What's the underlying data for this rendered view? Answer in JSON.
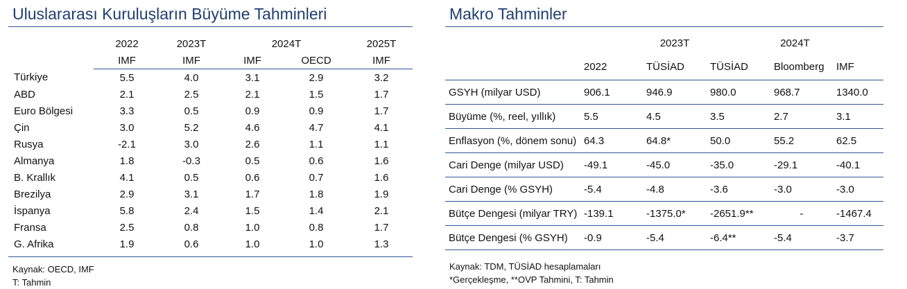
{
  "growth": {
    "title": "Uluslararası Kuruluşların Büyüme Tahminleri",
    "header_years": [
      "2022",
      "2023T",
      "2024T",
      "2025T"
    ],
    "header_sources": [
      "IMF",
      "IMF",
      "IMF",
      "OECD",
      "IMF"
    ],
    "rows": [
      {
        "country": "Türkiye",
        "values": [
          "5.5",
          "4.0",
          "3.1",
          "2.9",
          "3.2"
        ]
      },
      {
        "country": "ABD",
        "values": [
          "2.1",
          "2.5",
          "2.1",
          "1.5",
          "1.7"
        ]
      },
      {
        "country": "Euro Bölgesi",
        "values": [
          "3.3",
          "0.5",
          "0.9",
          "0.9",
          "1.7"
        ]
      },
      {
        "country": "Çin",
        "values": [
          "3.0",
          "5.2",
          "4.6",
          "4.7",
          "4.1"
        ]
      },
      {
        "country": "Rusya",
        "values": [
          "-2.1",
          "3.0",
          "2.6",
          "1.1",
          "1.1"
        ]
      },
      {
        "country": "Almanya",
        "values": [
          "1.8",
          "-0.3",
          "0.5",
          "0.6",
          "1.6"
        ]
      },
      {
        "country": "B. Krallık",
        "values": [
          "4.1",
          "0.5",
          "0.6",
          "0.7",
          "1.6"
        ]
      },
      {
        "country": "Brezilya",
        "values": [
          "2.9",
          "3.1",
          "1.7",
          "1.8",
          "1.9"
        ]
      },
      {
        "country": "İspanya",
        "values": [
          "5.8",
          "2.4",
          "1.5",
          "1.4",
          "2.1"
        ]
      },
      {
        "country": "Fransa",
        "values": [
          "2.5",
          "0.8",
          "1.0",
          "0.8",
          "1.7"
        ]
      },
      {
        "country": "G. Afrika",
        "values": [
          "1.9",
          "0.6",
          "1.0",
          "1.0",
          "1.3"
        ]
      }
    ],
    "source_lines": [
      "Kaynak: OECD, IMF",
      "T: Tahmin"
    ]
  },
  "macro": {
    "title": "Makro Tahminler",
    "header_years": [
      "2023T",
      "2024T"
    ],
    "header_sources": [
      "2022",
      "TÜSİAD",
      "TÜSİAD",
      "Bloomberg",
      "IMF"
    ],
    "rows": [
      {
        "label": "GSYH (milyar USD)",
        "values": [
          "906.1",
          "946.9",
          "980.0",
          "968.7",
          "1340.0"
        ]
      },
      {
        "label": "Büyüme (%, reel, yıllık)",
        "values": [
          "5.5",
          "4.5",
          "3.5",
          "2.7",
          "3.1"
        ]
      },
      {
        "label": "Enflasyon (%, dönem sonu)",
        "values": [
          "64.3",
          "64.8*",
          "50.0",
          "55.2",
          "62.5"
        ]
      },
      {
        "label": "Cari Denge (milyar USD)",
        "values": [
          "-49.1",
          "-45.0",
          "-35.0",
          "-29.1",
          "-40.1"
        ]
      },
      {
        "label": "Cari Denge (% GSYH)",
        "values": [
          "-5.4",
          "-4.8",
          "-3.6",
          "-3.0",
          "-3.0"
        ]
      },
      {
        "label": "Bütçe Dengesi  (milyar TRY)",
        "values": [
          "-139.1",
          "-1375.0*",
          "-2651.9**",
          "-",
          "-1467.4"
        ]
      },
      {
        "label": "Bütçe Dengesi (% GSYH)",
        "values": [
          "-0.9",
          "-5.4",
          "-6.4**",
          "-5.4",
          "-3.7"
        ]
      }
    ],
    "source_lines": [
      "Kaynak: TDM, TÜSİAD hesaplamaları",
      "*Gerçekleşme, **OVP Tahmini, T: Tahmin"
    ]
  },
  "colors": {
    "title": "#1f3e6f",
    "rule": "#2f5597"
  }
}
